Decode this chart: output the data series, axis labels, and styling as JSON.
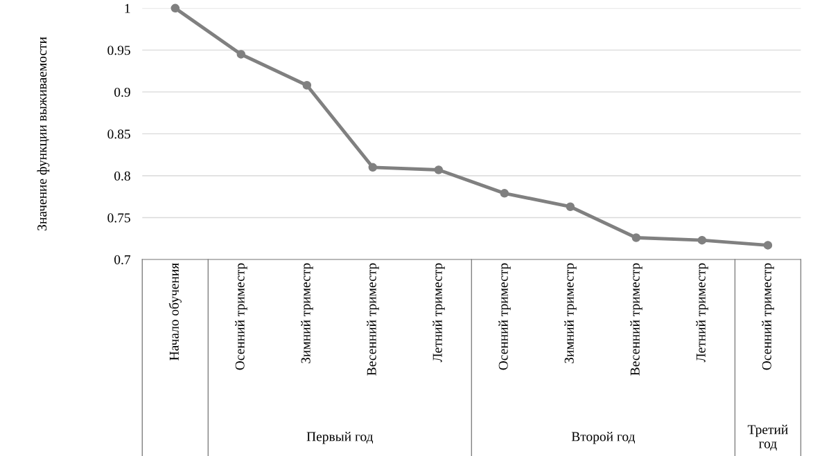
{
  "chart_data": {
    "type": "line",
    "ylabel": "Значение функции выживаемости",
    "categories": [
      "Начало обучения",
      "Осенний триместр",
      "Зимний триместр",
      "Весенний триместр",
      "Летний триместр",
      "Осенний триместр",
      "Зимний триместр",
      "Весенний триместр",
      "Летний триместр",
      "Осенний триместр"
    ],
    "series": [
      {
        "color": "#808080",
        "values": [
          1,
          0.945,
          0.908,
          0.81,
          0.807,
          0.779,
          0.763,
          0.726,
          0.723,
          0.717
        ]
      }
    ],
    "ylim": [
      0.7,
      1
    ],
    "yticks": [
      0.7,
      0.75,
      0.8,
      0.85,
      0.9,
      0.95,
      1
    ],
    "grid": "y",
    "marker": "circle",
    "line_style": "solid",
    "annotations": [
      "Первый год",
      "Второй год",
      "Третий\nгод"
    ]
  }
}
